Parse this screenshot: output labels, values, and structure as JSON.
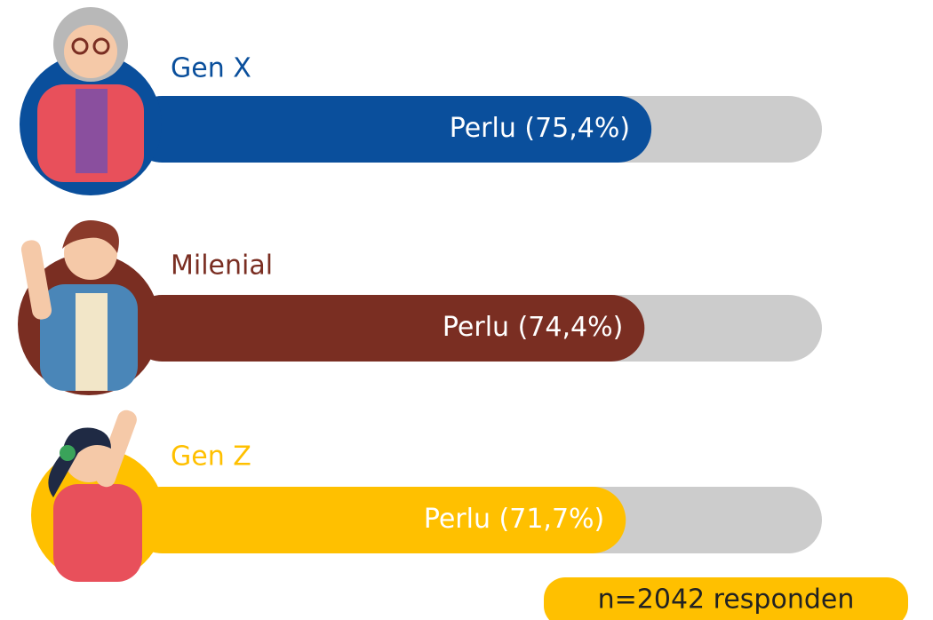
{
  "chart_data": {
    "type": "bar",
    "categories": [
      "Gen X",
      "Milenial",
      "Gen Z"
    ],
    "values": [
      75.4,
      74.4,
      71.7
    ],
    "value_labels": [
      "Perlu (75,4%)",
      "Perlu (74,4%)",
      "Perlu (71,7%)"
    ],
    "colors": [
      "#0a4f9c",
      "#7a2e22",
      "#ffc000"
    ],
    "xlim": [
      0,
      100
    ],
    "note": "n=2042 responden"
  }
}
